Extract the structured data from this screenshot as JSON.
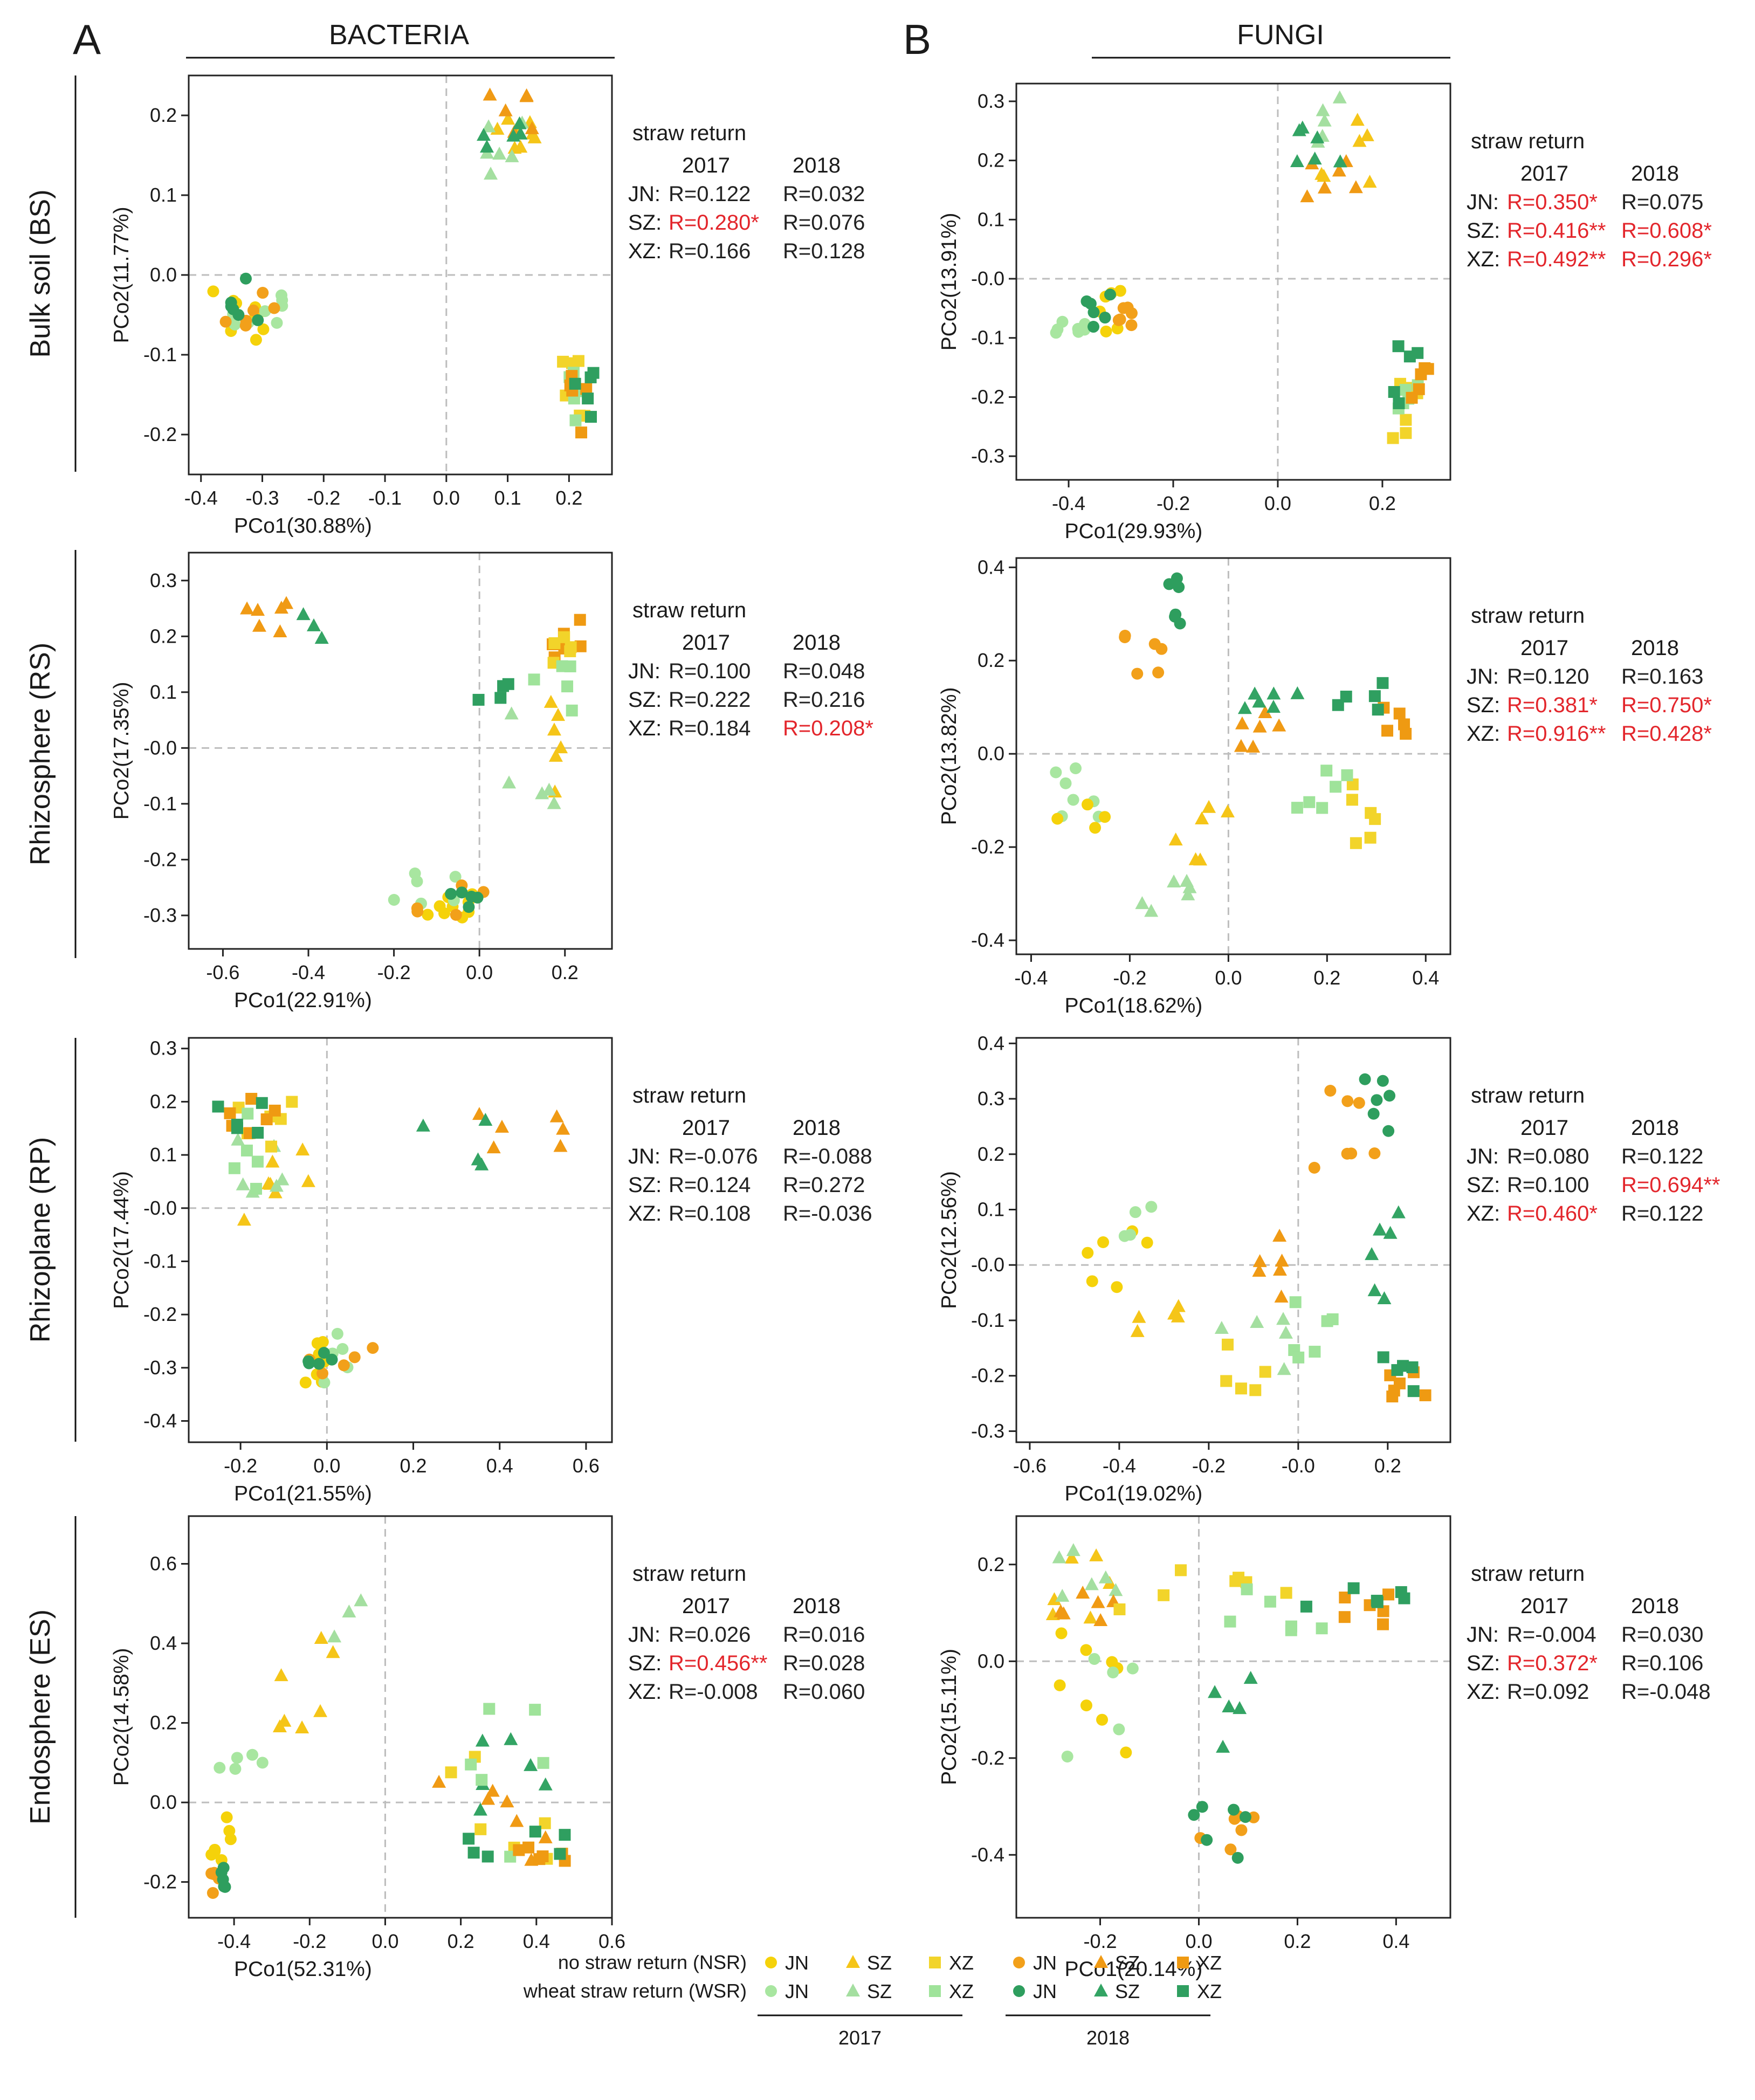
{
  "figure": {
    "panels": [
      {
        "letter": "A",
        "title": "BACTERIA"
      },
      {
        "letter": "B",
        "title": "FUNGI"
      }
    ],
    "rows": [
      "Bulk soil (BS)",
      "Rhizosphere (RS)",
      "Rhizoplane (RP)",
      "Endosphere (ES)"
    ],
    "stats_title": "straw return",
    "stats_year_labels": [
      "2017",
      "2018"
    ],
    "site_prefixes": [
      "JN:",
      "SZ:",
      "XZ:"
    ]
  },
  "colors": {
    "JN_NSR_2017": "#f5d20a",
    "SZ_NSR_2017": "#f5c518",
    "XZ_NSR_2017": "#f2d42a",
    "JN_WSR_2017": "#a8e6a0",
    "SZ_WSR_2017": "#a4dfa0",
    "XZ_WSR_2017": "#9fe39a",
    "JN_NSR_2018": "#f2a01a",
    "SZ_NSR_2018": "#f09a14",
    "XZ_NSR_2018": "#ef9a12",
    "JN_WSR_2018": "#2e9e5e",
    "SZ_WSR_2018": "#33a464",
    "XZ_WSR_2018": "#2f9f60",
    "significant": "#e3262c",
    "normal": "#222222"
  },
  "legend": {
    "rows": [
      "no straw return (NSR)",
      "wheat straw return (WSR)"
    ],
    "sites": [
      "JN",
      "SZ",
      "XZ"
    ],
    "years": [
      "2017",
      "2018"
    ]
  },
  "chart_data": [
    {
      "id": "bacteria-bs",
      "type": "scatter",
      "xlabel": "PCo1(30.88%)",
      "ylabel": "PCo2(11.77%)",
      "xlim": [
        -0.42,
        0.27
      ],
      "ylim": [
        -0.25,
        0.25
      ],
      "xticks": [
        "-0.4",
        "-0.3",
        "-0.2",
        "-0.1",
        "0.0",
        "0.1",
        "0.2"
      ],
      "yticks": [
        "-0.2",
        "-0.1",
        "0.0",
        "0.1",
        "0.2"
      ],
      "stats": [
        [
          {
            "t": "R=0.122",
            "sig": false
          },
          {
            "t": "R=0.032",
            "sig": false
          }
        ],
        [
          {
            "t": "R=0.280*",
            "sig": true
          },
          {
            "t": "R=0.076",
            "sig": false
          }
        ],
        [
          {
            "t": "R=0.166",
            "sig": false
          },
          {
            "t": "R=0.128",
            "sig": false
          }
        ]
      ]
    },
    {
      "id": "fungi-bs",
      "type": "scatter",
      "xlabel": "PCo1(29.93%)",
      "ylabel": "PCo2(13.91%)",
      "xlim": [
        -0.5,
        0.33
      ],
      "ylim": [
        -0.34,
        0.33
      ],
      "xticks": [
        "-0.4",
        "-0.2",
        "0.0",
        "0.2"
      ],
      "yticks": [
        "-0.3",
        "-0.2",
        "-0.1",
        "-0.0",
        "0.1",
        "0.2",
        "0.3"
      ],
      "stats": [
        [
          {
            "t": "R=0.350*",
            "sig": true
          },
          {
            "t": "R=0.075",
            "sig": false
          }
        ],
        [
          {
            "t": "R=0.416**",
            "sig": true
          },
          {
            "t": "R=0.608*",
            "sig": true
          }
        ],
        [
          {
            "t": "R=0.492**",
            "sig": true
          },
          {
            "t": "R=0.296*",
            "sig": true
          }
        ]
      ]
    },
    {
      "id": "bacteria-rs",
      "type": "scatter",
      "xlabel": "PCo1(22.91%)",
      "ylabel": "PCo2(17.35%)",
      "xlim": [
        -0.68,
        0.31
      ],
      "ylim": [
        -0.36,
        0.35
      ],
      "xticks": [
        "-0.6",
        "-0.4",
        "-0.2",
        "0.0",
        "0.2"
      ],
      "yticks": [
        "-0.3",
        "-0.2",
        "-0.1",
        "-0.0",
        "0.1",
        "0.2",
        "0.3"
      ],
      "stats": [
        [
          {
            "t": "R=0.100",
            "sig": false
          },
          {
            "t": "R=0.048",
            "sig": false
          }
        ],
        [
          {
            "t": "R=0.222",
            "sig": false
          },
          {
            "t": "R=0.216",
            "sig": false
          }
        ],
        [
          {
            "t": "R=0.184",
            "sig": false
          },
          {
            "t": "R=0.208*",
            "sig": true
          }
        ]
      ]
    },
    {
      "id": "fungi-rs",
      "type": "scatter",
      "xlabel": "PCo1(18.62%)",
      "ylabel": "PCo2(13.82%)",
      "xlim": [
        -0.43,
        0.45
      ],
      "ylim": [
        -0.43,
        0.42
      ],
      "xticks": [
        "-0.4",
        "-0.2",
        "0.0",
        "0.2",
        "0.4"
      ],
      "yticks": [
        "-0.4",
        "-0.2",
        "0.0",
        "0.2",
        "0.4"
      ],
      "stats": [
        [
          {
            "t": "R=0.120",
            "sig": false
          },
          {
            "t": "R=0.163",
            "sig": false
          }
        ],
        [
          {
            "t": "R=0.381*",
            "sig": true
          },
          {
            "t": "R=0.750*",
            "sig": true
          }
        ],
        [
          {
            "t": "R=0.916**",
            "sig": true
          },
          {
            "t": "R=0.428*",
            "sig": true
          }
        ]
      ]
    },
    {
      "id": "bacteria-rp",
      "type": "scatter",
      "xlabel": "PCo1(21.55%)",
      "ylabel": "PCo2(17.44%)",
      "xlim": [
        -0.32,
        0.66
      ],
      "ylim": [
        -0.44,
        0.32
      ],
      "xticks": [
        "-0.2",
        "0.0",
        "0.2",
        "0.4",
        "0.6"
      ],
      "yticks": [
        "-0.4",
        "-0.3",
        "-0.2",
        "-0.1",
        "-0.0",
        "0.1",
        "0.2",
        "0.3"
      ],
      "stats": [
        [
          {
            "t": "R=-0.076",
            "sig": false
          },
          {
            "t": "R=-0.088",
            "sig": false
          }
        ],
        [
          {
            "t": "R=0.124",
            "sig": false
          },
          {
            "t": "R=0.272",
            "sig": false
          }
        ],
        [
          {
            "t": "R=0.108",
            "sig": false
          },
          {
            "t": "R=-0.036",
            "sig": false
          }
        ]
      ]
    },
    {
      "id": "fungi-rp",
      "type": "scatter",
      "xlabel": "PCo1(19.02%)",
      "ylabel": "PCo2(12.56%)",
      "xlim": [
        -0.63,
        0.34
      ],
      "ylim": [
        -0.32,
        0.41
      ],
      "xticks": [
        "-0.6",
        "-0.4",
        "-0.2",
        "-0.0",
        "0.2"
      ],
      "yticks": [
        "-0.3",
        "-0.2",
        "-0.1",
        "-0.0",
        "0.1",
        "0.2",
        "0.3",
        "0.4"
      ],
      "stats": [
        [
          {
            "t": "R=0.080",
            "sig": false
          },
          {
            "t": "R=0.122",
            "sig": false
          }
        ],
        [
          {
            "t": "R=0.100",
            "sig": false
          },
          {
            "t": "R=0.694**",
            "sig": true
          }
        ],
        [
          {
            "t": "R=0.460*",
            "sig": true
          },
          {
            "t": "R=0.122",
            "sig": false
          }
        ]
      ]
    },
    {
      "id": "bacteria-es",
      "type": "scatter",
      "xlabel": "PCo1(52.31%)",
      "ylabel": "PCo2(14.58%)",
      "xlim": [
        -0.52,
        0.6
      ],
      "ylim": [
        -0.29,
        0.72
      ],
      "xticks": [
        "-0.4",
        "-0.2",
        "0.0",
        "0.2",
        "0.4",
        "0.6"
      ],
      "yticks": [
        "-0.2",
        "0.0",
        "0.2",
        "0.4",
        "0.6"
      ],
      "stats": [
        [
          {
            "t": "R=0.026",
            "sig": false
          },
          {
            "t": "R=0.016",
            "sig": false
          }
        ],
        [
          {
            "t": "R=0.456**",
            "sig": true
          },
          {
            "t": "R=0.028",
            "sig": false
          }
        ],
        [
          {
            "t": "R=-0.008",
            "sig": false
          },
          {
            "t": "R=0.060",
            "sig": false
          }
        ]
      ]
    },
    {
      "id": "fungi-es",
      "type": "scatter",
      "xlabel": "PCo1(20.14%)",
      "ylabel": "PCo2(15.11%)",
      "xlim": [
        -0.37,
        0.51
      ],
      "ylim": [
        -0.53,
        0.3
      ],
      "xticks": [
        "-0.2",
        "0.0",
        "0.2",
        "0.4"
      ],
      "yticks": [
        "-0.4",
        "-0.2",
        "0.0",
        "0.2"
      ],
      "stats": [
        [
          {
            "t": "R=-0.004",
            "sig": false
          },
          {
            "t": "R=0.030",
            "sig": false
          }
        ],
        [
          {
            "t": "R=0.372*",
            "sig": true
          },
          {
            "t": "R=0.106",
            "sig": false
          }
        ],
        [
          {
            "t": "R=0.092",
            "sig": false
          },
          {
            "t": "R=-0.048",
            "sig": false
          }
        ]
      ]
    }
  ]
}
